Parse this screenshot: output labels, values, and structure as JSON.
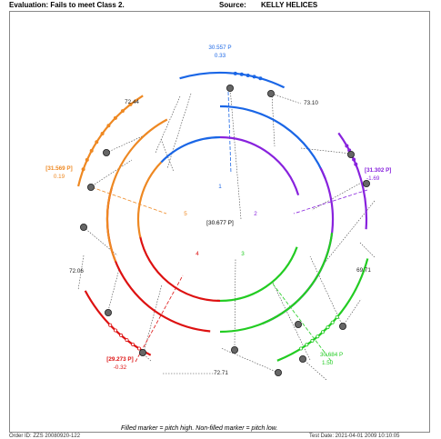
{
  "header": {
    "evaluation": "Evaluation: Fails to meet Class 2.",
    "source_label": "Source:",
    "source_value": "KELLY HELICES"
  },
  "diagram": {
    "center_label": "[30.677 P]",
    "sector_numbers": [
      "1",
      "2",
      "3",
      "4",
      "5"
    ],
    "gap_values": [
      "73.10",
      "69.71",
      "72.71",
      "72.06",
      "72.44"
    ],
    "blade_labels": [
      {
        "pitch": "30.557 P",
        "dev": "0.33"
      },
      {
        "pitch": "[31.302 P]",
        "dev": "-1.69"
      },
      {
        "pitch": "30.684 P",
        "dev": "1.50"
      },
      {
        "pitch": "[29.273 P]",
        "dev": "-0.32"
      },
      {
        "pitch": "[31.569 P]",
        "dev": "0.19"
      }
    ],
    "colors": {
      "blade1": "#1a66e6",
      "blade2": "#8822dd",
      "blade3": "#22cc22",
      "blade4": "#dd1111",
      "blade5": "#ee8822",
      "marker": "#666666",
      "frame": "#888888"
    }
  },
  "footer": {
    "legend": "Filled marker = pitch high.    Non-filled marker = pitch low.",
    "left_text": "Order ID: ZZS 20080920-122",
    "right_text": "Test Date: 2021-04-01 2009 10:10:05"
  }
}
